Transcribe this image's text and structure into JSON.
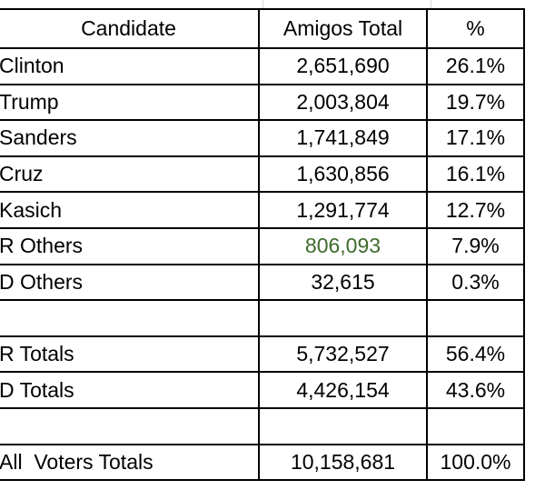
{
  "table": {
    "headers": {
      "candidate": "Candidate",
      "total": "Amigos Total",
      "percent": "%"
    },
    "rows": [
      {
        "candidate": "Clinton",
        "total": "2,651,690",
        "percent": "26.1%"
      },
      {
        "candidate": "Trump",
        "total": "2,003,804",
        "percent": "19.7%"
      },
      {
        "candidate": "Sanders",
        "total": "1,741,849",
        "percent": "17.1%"
      },
      {
        "candidate": "Cruz",
        "total": "1,630,856",
        "percent": "16.1%"
      },
      {
        "candidate": "Kasich",
        "total": "1,291,774",
        "percent": "12.7%"
      },
      {
        "candidate": "R Others",
        "total": "806,093",
        "percent": "7.9%"
      },
      {
        "candidate": "D Others",
        "total": "32,615",
        "percent": "0.3%"
      },
      {
        "candidate": "",
        "total": "",
        "percent": ""
      },
      {
        "candidate": "R Totals",
        "total": "5,732,527",
        "percent": "56.4%"
      },
      {
        "candidate": "D Totals",
        "total": "4,426,154",
        "percent": "43.6%"
      },
      {
        "candidate": "",
        "total": "",
        "percent": ""
      },
      {
        "candidate": "All  Voters Totals",
        "total": "10,158,681",
        "percent": "100.0%"
      }
    ],
    "highlight_color": "#3e6b2b"
  }
}
